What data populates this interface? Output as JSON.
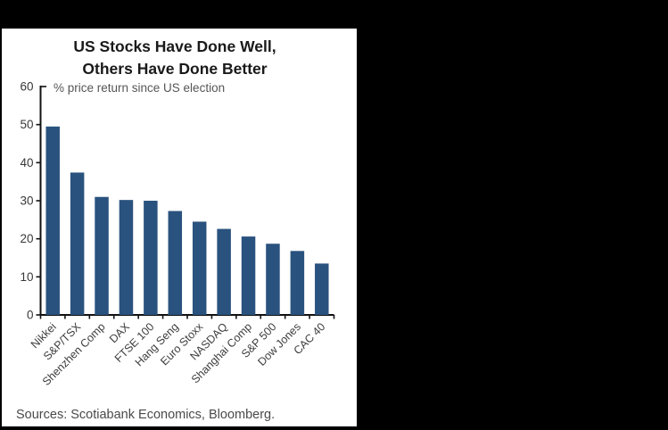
{
  "page": {
    "background_color": "#000000",
    "panel_color": "#ffffff"
  },
  "chart_data": {
    "type": "bar",
    "title_line1": "US Stocks Have Done Well,",
    "title_line2": "Others Have Done Better",
    "subtitle": "% price return since US election",
    "categories": [
      "Nikkei",
      "S&P/TSX",
      "Shenzhen Comp",
      "DAX",
      "FTSE 100",
      "Hang Seng",
      "Euro Stoxx",
      "NASDAQ",
      "Shanghai Comp",
      "S&P 500",
      "Dow Jones",
      "CAC 40"
    ],
    "values": [
      49.5,
      37.4,
      31.0,
      30.2,
      30.0,
      27.3,
      24.5,
      22.6,
      20.6,
      18.7,
      16.8,
      13.5
    ],
    "xlabel": "",
    "ylabel": "",
    "ylim": [
      0,
      60
    ],
    "yticks": [
      0,
      10,
      20,
      30,
      40,
      50,
      60
    ],
    "grid": false,
    "legend": false,
    "bar_color": "#2A527E",
    "x_label_rotation": -45,
    "source": "Sources: Scotiabank Economics, Bloomberg."
  }
}
